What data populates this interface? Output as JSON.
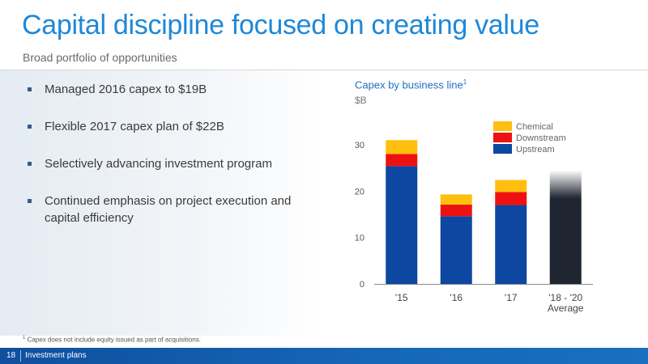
{
  "slide": {
    "title": "Capital discipline focused on creating value",
    "subtitle": "Broad portfolio of opportunities",
    "bullets": [
      "Managed 2016 capex to $19B",
      "Flexible 2017 capex plan of $22B",
      "Selectively advancing investment program",
      "Continued emphasis on project execution and capital efficiency"
    ],
    "footnote_marker": "1",
    "footnote": "Capex does not include equity issued as part of acquisitions.",
    "page_number": "18",
    "section": "Investment plans"
  },
  "chart_data": {
    "type": "bar",
    "stacked": true,
    "title": "Capex by business line",
    "title_superscript": "1",
    "ylabel": "$B",
    "ylim": [
      0,
      30
    ],
    "yticks": [
      0,
      10,
      20,
      30
    ],
    "categories": [
      "'15",
      "'16",
      "'17",
      "'18 - '20"
    ],
    "category_sublabels": [
      "",
      "",
      "",
      "Average"
    ],
    "series": [
      {
        "name": "Upstream",
        "color": "#0d47a1",
        "values": [
          25.4,
          14.6,
          17.0,
          null
        ]
      },
      {
        "name": "Downstream",
        "color": "#ee1111",
        "values": [
          2.6,
          2.5,
          2.8,
          null
        ]
      },
      {
        "name": "Chemical",
        "color": "#ffbf0f",
        "values": [
          3.0,
          2.2,
          2.6,
          null
        ]
      }
    ],
    "range_bar": {
      "category": "'18 - '20",
      "color": "#1f2530",
      "solid_to": 18.5,
      "faded_to": 24.5
    },
    "legend_position": "top-right",
    "grid": false
  }
}
